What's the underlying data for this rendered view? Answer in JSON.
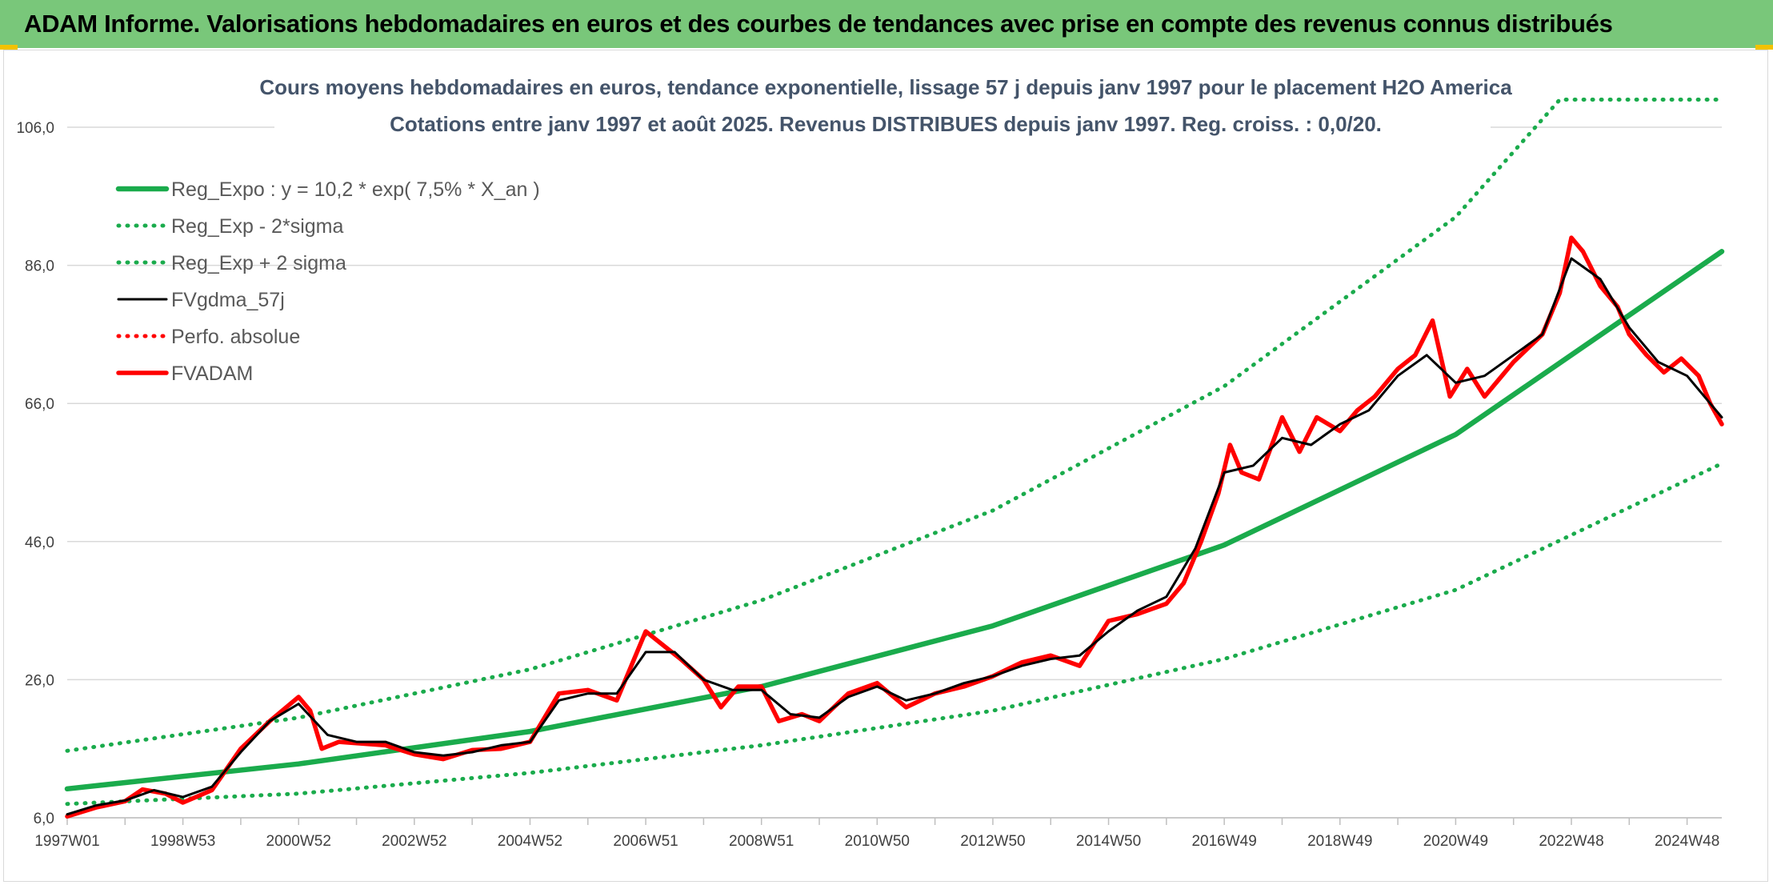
{
  "page": {
    "banner_title": "ADAM Informe. Valorisations hebdomadaires en euros et des courbes de tendances avec prise en compte des revenus connus distribués"
  },
  "colors": {
    "banner": "#79c77a",
    "green": "#1aab4c",
    "red": "#ff0000",
    "black": "#000000",
    "grid": "#d9d9d9"
  },
  "chart_data": {
    "type": "line",
    "title": "Cours moyens hebdomadaires en euros, tendance exponentielle, lissage 57 j depuis janv 1997 pour le placement H2O America",
    "subtitle": "Cotations entre janv 1997 et août 2025. Revenus DISTRIBUES depuis janv 1997. Reg. croiss. : 0,0/20.",
    "xlabel": "",
    "ylabel": "",
    "x_range": [
      1997.0,
      2025.6
    ],
    "ylim": [
      6.0,
      106.0
    ],
    "y_ticks": [
      "6,0",
      "26,0",
      "46,0",
      "66,0",
      "86,0",
      "106,0"
    ],
    "x_ticks": [
      {
        "label": "1997W01",
        "x": 1997.0
      },
      {
        "label": "1998W53",
        "x": 1999.0
      },
      {
        "label": "2000W52",
        "x": 2001.0
      },
      {
        "label": "2002W52",
        "x": 2003.0
      },
      {
        "label": "2004W52",
        "x": 2005.0
      },
      {
        "label": "2006W51",
        "x": 2007.0
      },
      {
        "label": "2008W51",
        "x": 2009.0
      },
      {
        "label": "2010W50",
        "x": 2011.0
      },
      {
        "label": "2012W50",
        "x": 2013.0
      },
      {
        "label": "2014W50",
        "x": 2015.0
      },
      {
        "label": "2016W49",
        "x": 2017.0
      },
      {
        "label": "2018W49",
        "x": 2019.0
      },
      {
        "label": "2020W49",
        "x": 2021.0
      },
      {
        "label": "2022W48",
        "x": 2023.0
      },
      {
        "label": "2024W48",
        "x": 2025.0
      }
    ],
    "grid": true,
    "legend_position": "top-left",
    "series": [
      {
        "name": "Reg_Expo : y = 10,2 * exp( 7,5% *  X_an )",
        "style": "solid-thick",
        "color": "#1aab4c",
        "points": [
          [
            1997.0,
            10.2
          ],
          [
            2001.0,
            13.8
          ],
          [
            2005.0,
            18.5
          ],
          [
            2009.0,
            25.0
          ],
          [
            2013.0,
            33.8
          ],
          [
            2017.0,
            45.5
          ],
          [
            2021.0,
            61.5
          ],
          [
            2025.6,
            88.0
          ]
        ]
      },
      {
        "name": "Reg_Exp - 2*sigma",
        "style": "dotted",
        "color": "#1aab4c",
        "points": [
          [
            1997.0,
            8.0
          ],
          [
            2001.0,
            9.5
          ],
          [
            2005.0,
            12.5
          ],
          [
            2009.0,
            16.5
          ],
          [
            2013.0,
            21.5
          ],
          [
            2017.0,
            29.0
          ],
          [
            2021.0,
            39.0
          ],
          [
            2025.6,
            57.3
          ]
        ]
      },
      {
        "name": "Reg_Exp + 2 sigma",
        "style": "dotted",
        "color": "#1aab4c",
        "points": [
          [
            1997.0,
            15.7
          ],
          [
            2001.0,
            20.5
          ],
          [
            2005.0,
            27.5
          ],
          [
            2009.0,
            37.5
          ],
          [
            2013.0,
            50.5
          ],
          [
            2017.0,
            68.5
          ],
          [
            2021.0,
            93.0
          ],
          [
            2022.8,
            110.0
          ],
          [
            2025.6,
            110.0
          ]
        ]
      },
      {
        "name": "FVgdma_57j",
        "style": "solid",
        "color": "#000000",
        "points": [
          [
            1997.0,
            6.5
          ],
          [
            1997.5,
            7.8
          ],
          [
            1998.0,
            8.5
          ],
          [
            1998.5,
            10.0
          ],
          [
            1999.0,
            9.0
          ],
          [
            1999.5,
            10.5
          ],
          [
            2000.0,
            15.5
          ],
          [
            2000.5,
            20.0
          ],
          [
            2001.0,
            22.5
          ],
          [
            2001.5,
            18.0
          ],
          [
            2002.0,
            17.0
          ],
          [
            2002.5,
            17.0
          ],
          [
            2003.0,
            15.5
          ],
          [
            2003.5,
            15.0
          ],
          [
            2004.0,
            15.5
          ],
          [
            2004.5,
            16.5
          ],
          [
            2005.0,
            17.0
          ],
          [
            2005.5,
            23.0
          ],
          [
            2006.0,
            24.0
          ],
          [
            2006.5,
            24.0
          ],
          [
            2007.0,
            30.0
          ],
          [
            2007.5,
            30.0
          ],
          [
            2008.0,
            26.0
          ],
          [
            2008.5,
            24.5
          ],
          [
            2009.0,
            24.5
          ],
          [
            2009.5,
            21.0
          ],
          [
            2010.0,
            20.5
          ],
          [
            2010.5,
            23.5
          ],
          [
            2011.0,
            25.0
          ],
          [
            2011.5,
            23.0
          ],
          [
            2012.0,
            24.0
          ],
          [
            2012.5,
            25.5
          ],
          [
            2013.0,
            26.5
          ],
          [
            2013.5,
            28.0
          ],
          [
            2014.0,
            29.0
          ],
          [
            2014.5,
            29.5
          ],
          [
            2015.0,
            33.0
          ],
          [
            2015.5,
            36.0
          ],
          [
            2016.0,
            38.0
          ],
          [
            2016.5,
            45.0
          ],
          [
            2017.0,
            56.0
          ],
          [
            2017.5,
            57.0
          ],
          [
            2018.0,
            61.0
          ],
          [
            2018.5,
            60.0
          ],
          [
            2019.0,
            63.0
          ],
          [
            2019.5,
            65.0
          ],
          [
            2020.0,
            70.0
          ],
          [
            2020.5,
            73.0
          ],
          [
            2021.0,
            69.0
          ],
          [
            2021.5,
            70.0
          ],
          [
            2022.0,
            73.0
          ],
          [
            2022.5,
            76.0
          ],
          [
            2023.0,
            87.0
          ],
          [
            2023.5,
            84.0
          ],
          [
            2024.0,
            77.0
          ],
          [
            2024.5,
            72.0
          ],
          [
            2025.0,
            70.0
          ],
          [
            2025.6,
            64.0
          ]
        ]
      },
      {
        "name": "Perfo. absolue",
        "style": "dotted",
        "color": "#ff0000",
        "points": []
      },
      {
        "name": "FVADAM",
        "style": "solid-thick",
        "color": "#ff0000",
        "points": [
          [
            1997.0,
            6.2
          ],
          [
            1997.5,
            7.5
          ],
          [
            1998.0,
            8.4
          ],
          [
            1998.3,
            10.1
          ],
          [
            1998.7,
            9.5
          ],
          [
            1999.0,
            8.2
          ],
          [
            1999.5,
            10.0
          ],
          [
            2000.0,
            16.0
          ],
          [
            2000.5,
            20.0
          ],
          [
            2001.0,
            23.5
          ],
          [
            2001.2,
            21.5
          ],
          [
            2001.4,
            16.0
          ],
          [
            2001.7,
            17.0
          ],
          [
            2002.0,
            16.8
          ],
          [
            2002.5,
            16.5
          ],
          [
            2003.0,
            15.2
          ],
          [
            2003.5,
            14.5
          ],
          [
            2004.0,
            15.8
          ],
          [
            2004.5,
            16.0
          ],
          [
            2005.0,
            17.0
          ],
          [
            2005.5,
            24.0
          ],
          [
            2006.0,
            24.5
          ],
          [
            2006.5,
            23.0
          ],
          [
            2007.0,
            33.0
          ],
          [
            2007.3,
            31.0
          ],
          [
            2007.6,
            29.0
          ],
          [
            2008.0,
            26.0
          ],
          [
            2008.3,
            22.0
          ],
          [
            2008.6,
            25.0
          ],
          [
            2009.0,
            25.0
          ],
          [
            2009.3,
            20.0
          ],
          [
            2009.7,
            21.0
          ],
          [
            2010.0,
            20.0
          ],
          [
            2010.5,
            24.0
          ],
          [
            2011.0,
            25.5
          ],
          [
            2011.5,
            22.0
          ],
          [
            2012.0,
            24.0
          ],
          [
            2012.5,
            25.0
          ],
          [
            2013.0,
            26.5
          ],
          [
            2013.5,
            28.5
          ],
          [
            2014.0,
            29.5
          ],
          [
            2014.5,
            28.0
          ],
          [
            2015.0,
            34.5
          ],
          [
            2015.5,
            35.5
          ],
          [
            2016.0,
            37.0
          ],
          [
            2016.3,
            40.0
          ],
          [
            2016.6,
            46.0
          ],
          [
            2016.9,
            53.0
          ],
          [
            2017.1,
            60.0
          ],
          [
            2017.3,
            56.0
          ],
          [
            2017.6,
            55.0
          ],
          [
            2018.0,
            64.0
          ],
          [
            2018.3,
            59.0
          ],
          [
            2018.6,
            64.0
          ],
          [
            2019.0,
            62.0
          ],
          [
            2019.3,
            65.0
          ],
          [
            2019.6,
            67.0
          ],
          [
            2020.0,
            71.0
          ],
          [
            2020.3,
            73.0
          ],
          [
            2020.6,
            78.0
          ],
          [
            2020.9,
            67.0
          ],
          [
            2021.2,
            71.0
          ],
          [
            2021.5,
            67.0
          ],
          [
            2021.8,
            70.0
          ],
          [
            2022.0,
            72.0
          ],
          [
            2022.5,
            76.0
          ],
          [
            2022.8,
            82.0
          ],
          [
            2023.0,
            90.0
          ],
          [
            2023.2,
            88.0
          ],
          [
            2023.5,
            83.0
          ],
          [
            2023.8,
            80.0
          ],
          [
            2024.0,
            76.0
          ],
          [
            2024.3,
            73.0
          ],
          [
            2024.6,
            70.5
          ],
          [
            2024.9,
            72.5
          ],
          [
            2025.2,
            70.0
          ],
          [
            2025.4,
            66.0
          ],
          [
            2025.6,
            63.0
          ]
        ]
      }
    ]
  }
}
